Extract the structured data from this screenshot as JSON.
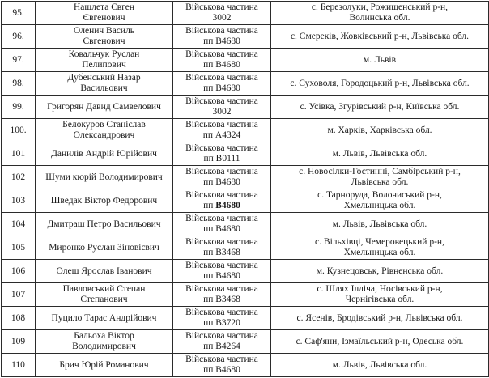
{
  "document": {
    "unit_label": "Військова частина",
    "rows": [
      {
        "num": "95.",
        "name": "Нашлета Євген\nЄвгенович",
        "unit": "3002",
        "unit_code_bold": false,
        "location": "с. Березолуки, Рожищенський р-н,\nВолинська обл."
      },
      {
        "num": "96.",
        "name": "Оленич Василь\nЄвгенович",
        "unit": "пп В4680",
        "unit_code_bold": false,
        "location": "с. Смереків, Жовківський р-н, Львівська обл."
      },
      {
        "num": "97.",
        "name": "Ковальчук Руслан\nПелипович",
        "unit": "пп В4680",
        "unit_code_bold": false,
        "location": "м. Львів"
      },
      {
        "num": "98.",
        "name": "Дубенський Назар\nВасильович",
        "unit": "пп В4680",
        "unit_code_bold": false,
        "location": "с. Суховоля, Городоцький р-н, Львівська обл."
      },
      {
        "num": "99.",
        "name": "Григорян Давид Самвелович",
        "unit": "3002",
        "unit_code_bold": false,
        "location": "с. Усівка, Згурівський р-н, Київська обл."
      },
      {
        "num": "100.",
        "name": "Белокуров Станіслав\nОлександрович",
        "unit": "пп А4324",
        "unit_code_bold": false,
        "location": "м. Харків, Харківська обл."
      },
      {
        "num": "101",
        "name": "Данилів Андрій Юрійович",
        "unit": "пп В0111",
        "unit_code_bold": false,
        "location": "м. Львів, Львівська обл."
      },
      {
        "num": "102",
        "name": "Шуми кюрій Володимирович",
        "unit": "пп В4680",
        "unit_code_bold": false,
        "location": "с. Новосілки-Гостинні, Самбірський р-н,\nЛьвівська обл."
      },
      {
        "num": "103",
        "name": "Шведак Віктор Федорович",
        "unit": "пп В4680",
        "unit_code_bold": true,
        "location": "с. Тарноруда, Волочиський р-н,\nХмельницька обл."
      },
      {
        "num": "104",
        "name": "Дмитраш Петро Васильович",
        "unit": "пп В4680",
        "unit_code_bold": false,
        "location": "м. Львів, Львівська обл."
      },
      {
        "num": "105",
        "name": "Миронко Руслан Зіновієвич",
        "unit": "пп В3468",
        "unit_code_bold": false,
        "location": "с. Вільхівці, Чемеровецький р-н,\nХмельницька обл."
      },
      {
        "num": "106",
        "name": "Олеш Ярослав Іванович",
        "unit": "пп В4680",
        "unit_code_bold": false,
        "location": "м. Кузнецовськ, Рівненська обл."
      },
      {
        "num": "107",
        "name": "Павловський Степан\nСтепанович",
        "unit": "пп В3468",
        "unit_code_bold": false,
        "location": "с. Шлях Ілліча, Носівський р-н,\nЧернігівська обл."
      },
      {
        "num": "108",
        "name": "Пуцило Тарас Андрійович",
        "unit": "пп В3720",
        "unit_code_bold": false,
        "location": "с. Ясенів, Бродівський р-н, Львівська обл."
      },
      {
        "num": "109",
        "name": "Бальоха Віктор\nВолодимирович",
        "unit": "пп В4264",
        "unit_code_bold": false,
        "location": "с. Саф'яни, Ізмаїльський р-н, Одеська обл."
      },
      {
        "num": "110",
        "name": "Брич Юрій Романович",
        "unit": "пп В4680",
        "unit_code_bold": false,
        "location": "м. Львів, Львівська обл."
      }
    ]
  }
}
